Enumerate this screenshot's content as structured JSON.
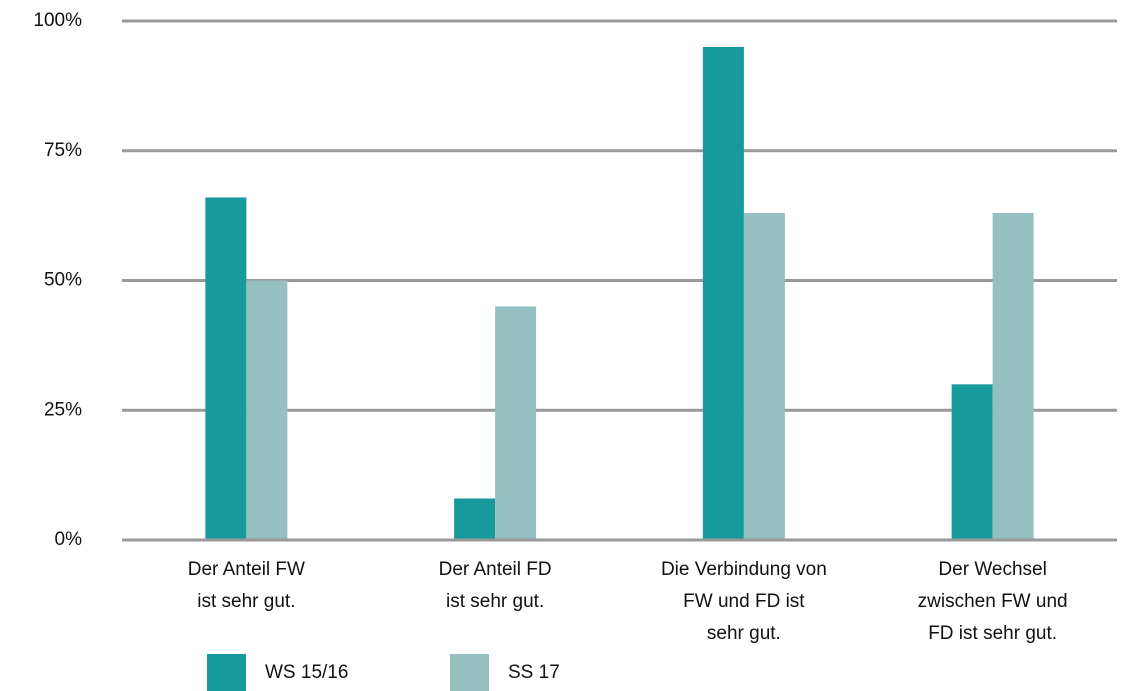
{
  "chart_data": {
    "type": "bar",
    "categories": [
      "Der Anteil FW\nist sehr gut.",
      "Der Anteil FD\nist sehr gut.",
      "Die Verbindung von\nFW und FD ist\nsehr gut.",
      "Der Wechsel\nzwischen FW und\nFD ist sehr gut."
    ],
    "series": [
      {
        "name": "WS 15/16",
        "color": "#169a9b",
        "values": [
          66,
          8,
          95,
          30
        ]
      },
      {
        "name": "SS 17",
        "color": "#96c0c0",
        "values": [
          50,
          45,
          63,
          63
        ]
      }
    ],
    "ylim": [
      0,
      100
    ],
    "yticks": [
      {
        "value": 0,
        "label": "0%"
      },
      {
        "value": 25,
        "label": "25%"
      },
      {
        "value": 50,
        "label": "50%"
      },
      {
        "value": 75,
        "label": "75%"
      },
      {
        "value": 100,
        "label": "100%"
      }
    ],
    "grid": true,
    "legend": "bottom"
  }
}
